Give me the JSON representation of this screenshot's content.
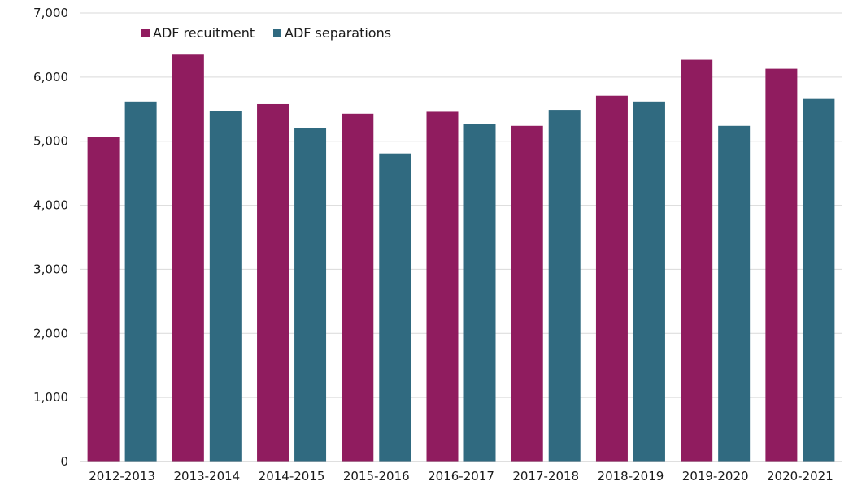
{
  "chart_data": {
    "type": "bar",
    "title": "",
    "xlabel": "",
    "ylabel": "",
    "categories": [
      "2012-2013",
      "2013-2014",
      "2014-2015",
      "2015-2016",
      "2016-2017",
      "2017-2018",
      "2018-2019",
      "2019-2020",
      "2020-2021"
    ],
    "series": [
      {
        "name": "ADF recuitment",
        "color": "#901C5F",
        "values": [
          5060,
          6350,
          5580,
          5430,
          5460,
          5240,
          5710,
          6270,
          6130
        ]
      },
      {
        "name": "ADF separations",
        "color": "#306A80",
        "values": [
          5620,
          5470,
          5210,
          4810,
          5270,
          5490,
          5620,
          5240,
          5660
        ]
      }
    ],
    "ylim": [
      0,
      7000
    ],
    "yticks": [
      0,
      1000,
      2000,
      3000,
      4000,
      5000,
      6000,
      7000
    ],
    "ytick_labels": [
      "0",
      "1,000",
      "2,000",
      "3,000",
      "4,000",
      "5,000",
      "6,000",
      "7,000"
    ],
    "grid": true,
    "legend_position": "top-left"
  }
}
